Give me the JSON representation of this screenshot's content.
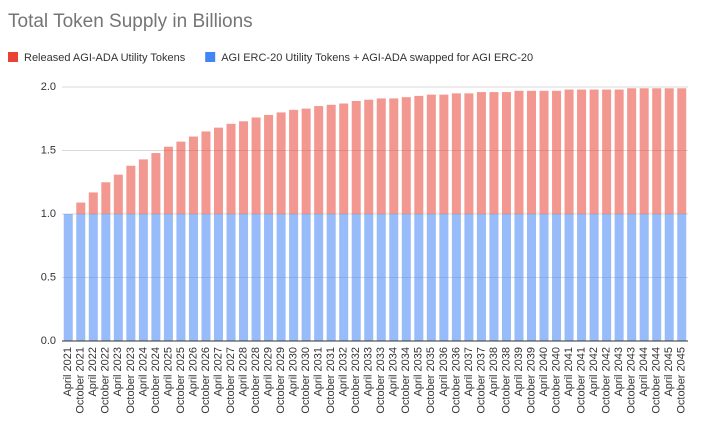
{
  "chart_data": {
    "type": "stacked_bar",
    "title": "Total Token Supply in Billions",
    "categories": [
      "April 2021",
      "October 2021",
      "April 2022",
      "October 2022",
      "April 2023",
      "October 2023",
      "April 2024",
      "October 2024",
      "April 2025",
      "October 2025",
      "April 2026",
      "October 2026",
      "April 2027",
      "October 2027",
      "April 2028",
      "October 2028",
      "April 2029",
      "October 2029",
      "April 2030",
      "October 2030",
      "April 2031",
      "October 2031",
      "April 2032",
      "October 2032",
      "April 2033",
      "October 2033",
      "April 2034",
      "October 2034",
      "April 2035",
      "October 2035",
      "April 2036",
      "October 2036",
      "April 2037",
      "October 2037",
      "April 2038",
      "October 2038",
      "April 2039",
      "October 2039",
      "April 2040",
      "October 2040",
      "April 2041",
      "October 2041",
      "April 2042",
      "October 2042",
      "April 2043",
      "October 2043",
      "April 2044",
      "October 2044",
      "April 2045",
      "October 2045"
    ],
    "series": [
      {
        "name": "AGI ERC-20 Utility Tokens + AGI-ADA swapped for AGI ERC-20",
        "color": "#4285f4",
        "values": [
          1,
          1,
          1,
          1,
          1,
          1,
          1,
          1,
          1,
          1,
          1,
          1,
          1,
          1,
          1,
          1,
          1,
          1,
          1,
          1,
          1,
          1,
          1,
          1,
          1,
          1,
          1,
          1,
          1,
          1,
          1,
          1,
          1,
          1,
          1,
          1,
          1,
          1,
          1,
          1,
          1,
          1,
          1,
          1,
          1,
          1,
          1,
          1,
          1,
          1
        ]
      },
      {
        "name": "Released AGI-ADA Utility Tokens",
        "color": "#ea4335",
        "values": [
          0,
          0.09,
          0.17,
          0.25,
          0.31,
          0.38,
          0.43,
          0.48,
          0.53,
          0.57,
          0.61,
          0.65,
          0.68,
          0.71,
          0.73,
          0.76,
          0.78,
          0.8,
          0.82,
          0.83,
          0.85,
          0.86,
          0.87,
          0.89,
          0.9,
          0.91,
          0.91,
          0.92,
          0.93,
          0.94,
          0.94,
          0.95,
          0.95,
          0.96,
          0.96,
          0.96,
          0.97,
          0.97,
          0.97,
          0.97,
          0.98,
          0.98,
          0.98,
          0.98,
          0.98,
          0.99,
          0.99,
          0.99,
          0.99,
          0.99
        ]
      }
    ],
    "legend_order": [
      1,
      0
    ],
    "ylim": [
      0,
      2
    ],
    "yticks": [
      {
        "value": 0,
        "label": "0.0"
      },
      {
        "value": 0.5,
        "label": "0.5"
      },
      {
        "value": 1,
        "label": "1.0"
      },
      {
        "value": 1.5,
        "label": "1.5"
      },
      {
        "value": 2,
        "label": "2.0"
      }
    ],
    "grid": true
  }
}
